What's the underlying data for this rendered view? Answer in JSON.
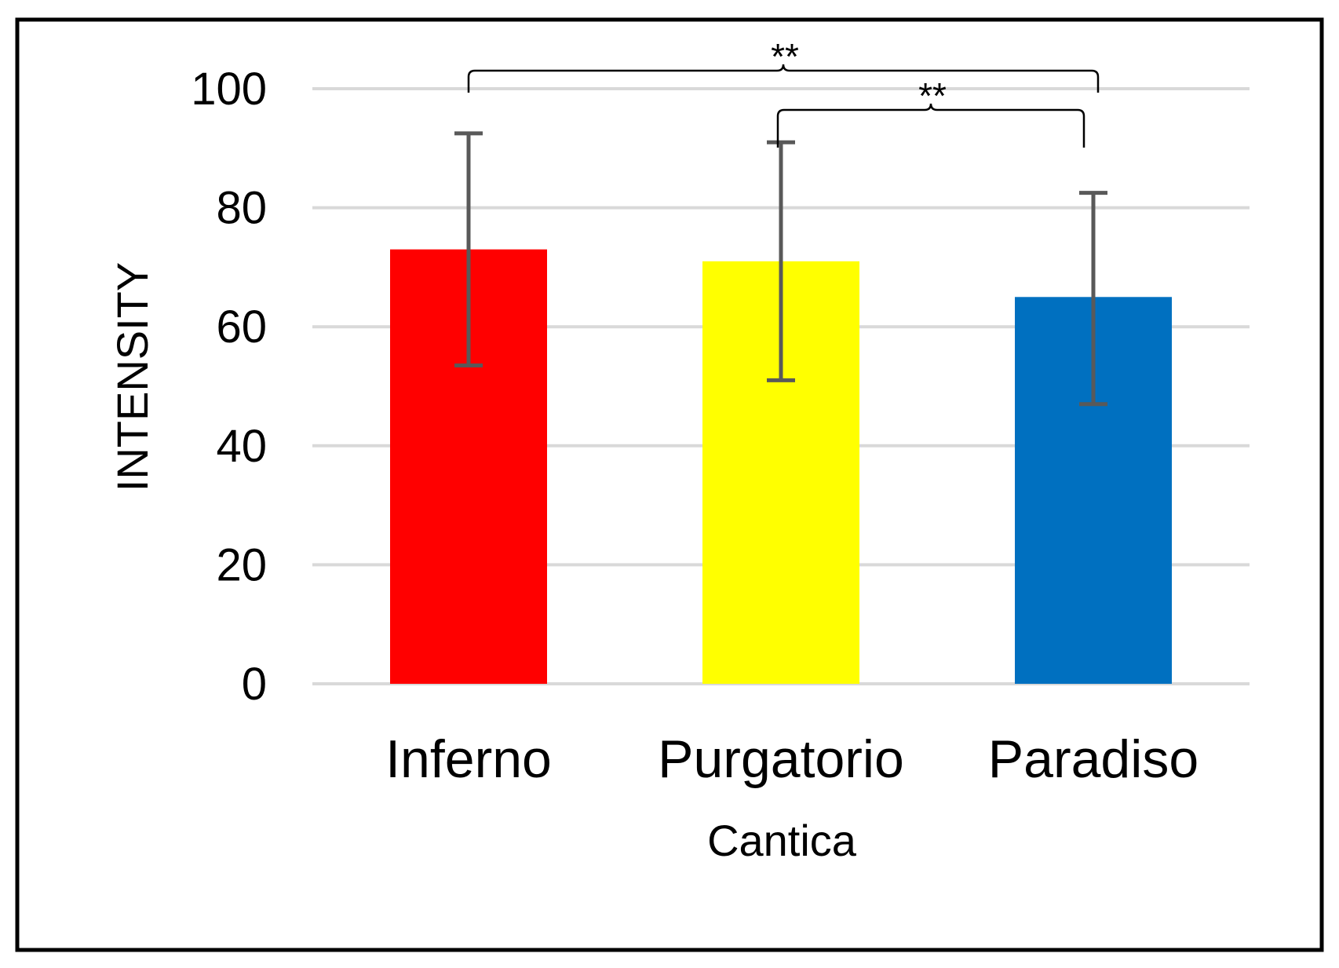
{
  "chart_data": {
    "type": "bar",
    "title": "",
    "xlabel": "Cantica",
    "ylabel": "INTENSITY",
    "categories": [
      "Inferno",
      "Purgatorio",
      "Paradiso"
    ],
    "values": [
      73,
      71,
      65
    ],
    "error_high": [
      92.5,
      91,
      82.5
    ],
    "error_low": [
      53.5,
      51,
      47
    ],
    "colors": [
      "#ff0000",
      "#ffff00",
      "#0070c0"
    ],
    "ylim": [
      0,
      100
    ],
    "yticks": [
      0,
      20,
      40,
      60,
      80,
      100
    ],
    "grid": true,
    "significance": [
      {
        "from": 0,
        "to": 2,
        "label": "**"
      },
      {
        "from": 1,
        "to": 2,
        "label": "**"
      }
    ]
  }
}
